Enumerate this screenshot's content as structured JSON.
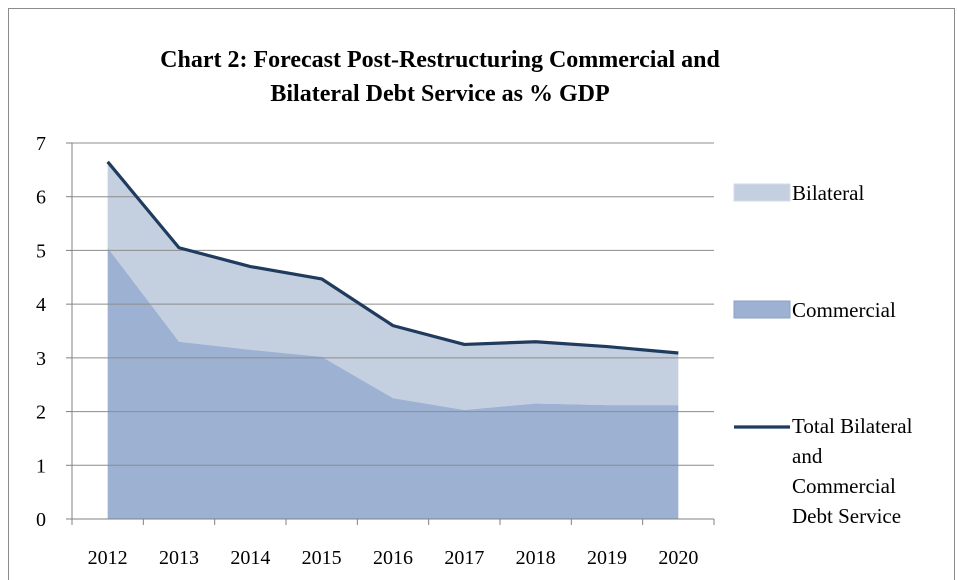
{
  "chart_data": {
    "type": "area",
    "title_lines": [
      "Chart 2: Forecast Post-Restructuring Commercial and",
      "Bilateral Debt Service as % GDP"
    ],
    "x": [
      "2012",
      "2013",
      "2014",
      "2015",
      "2016",
      "2017",
      "2018",
      "2019",
      "2020"
    ],
    "ylim": [
      0,
      7
    ],
    "yticks": [
      "0",
      "1",
      "2",
      "3",
      "4",
      "5",
      "6",
      "7"
    ],
    "grid": true,
    "legend_position": "right",
    "series": [
      {
        "name": "Bilateral",
        "kind": "stacked-area",
        "values": [
          1.6,
          1.75,
          1.55,
          1.45,
          1.35,
          1.22,
          1.15,
          1.09,
          0.97
        ],
        "color": "#c4cfe0"
      },
      {
        "name": "Commercial",
        "kind": "stacked-area",
        "values": [
          5.05,
          3.3,
          3.15,
          3.02,
          2.25,
          2.03,
          2.15,
          2.12,
          2.12
        ],
        "color": "#9db2d3"
      },
      {
        "name_lines": [
          "Total Bilateral",
          "and",
          "Commercial",
          "Debt Service"
        ],
        "kind": "line",
        "values": [
          6.65,
          5.05,
          4.7,
          4.47,
          3.6,
          3.25,
          3.3,
          3.21,
          3.09
        ],
        "color": "#1f3b5e"
      }
    ]
  }
}
